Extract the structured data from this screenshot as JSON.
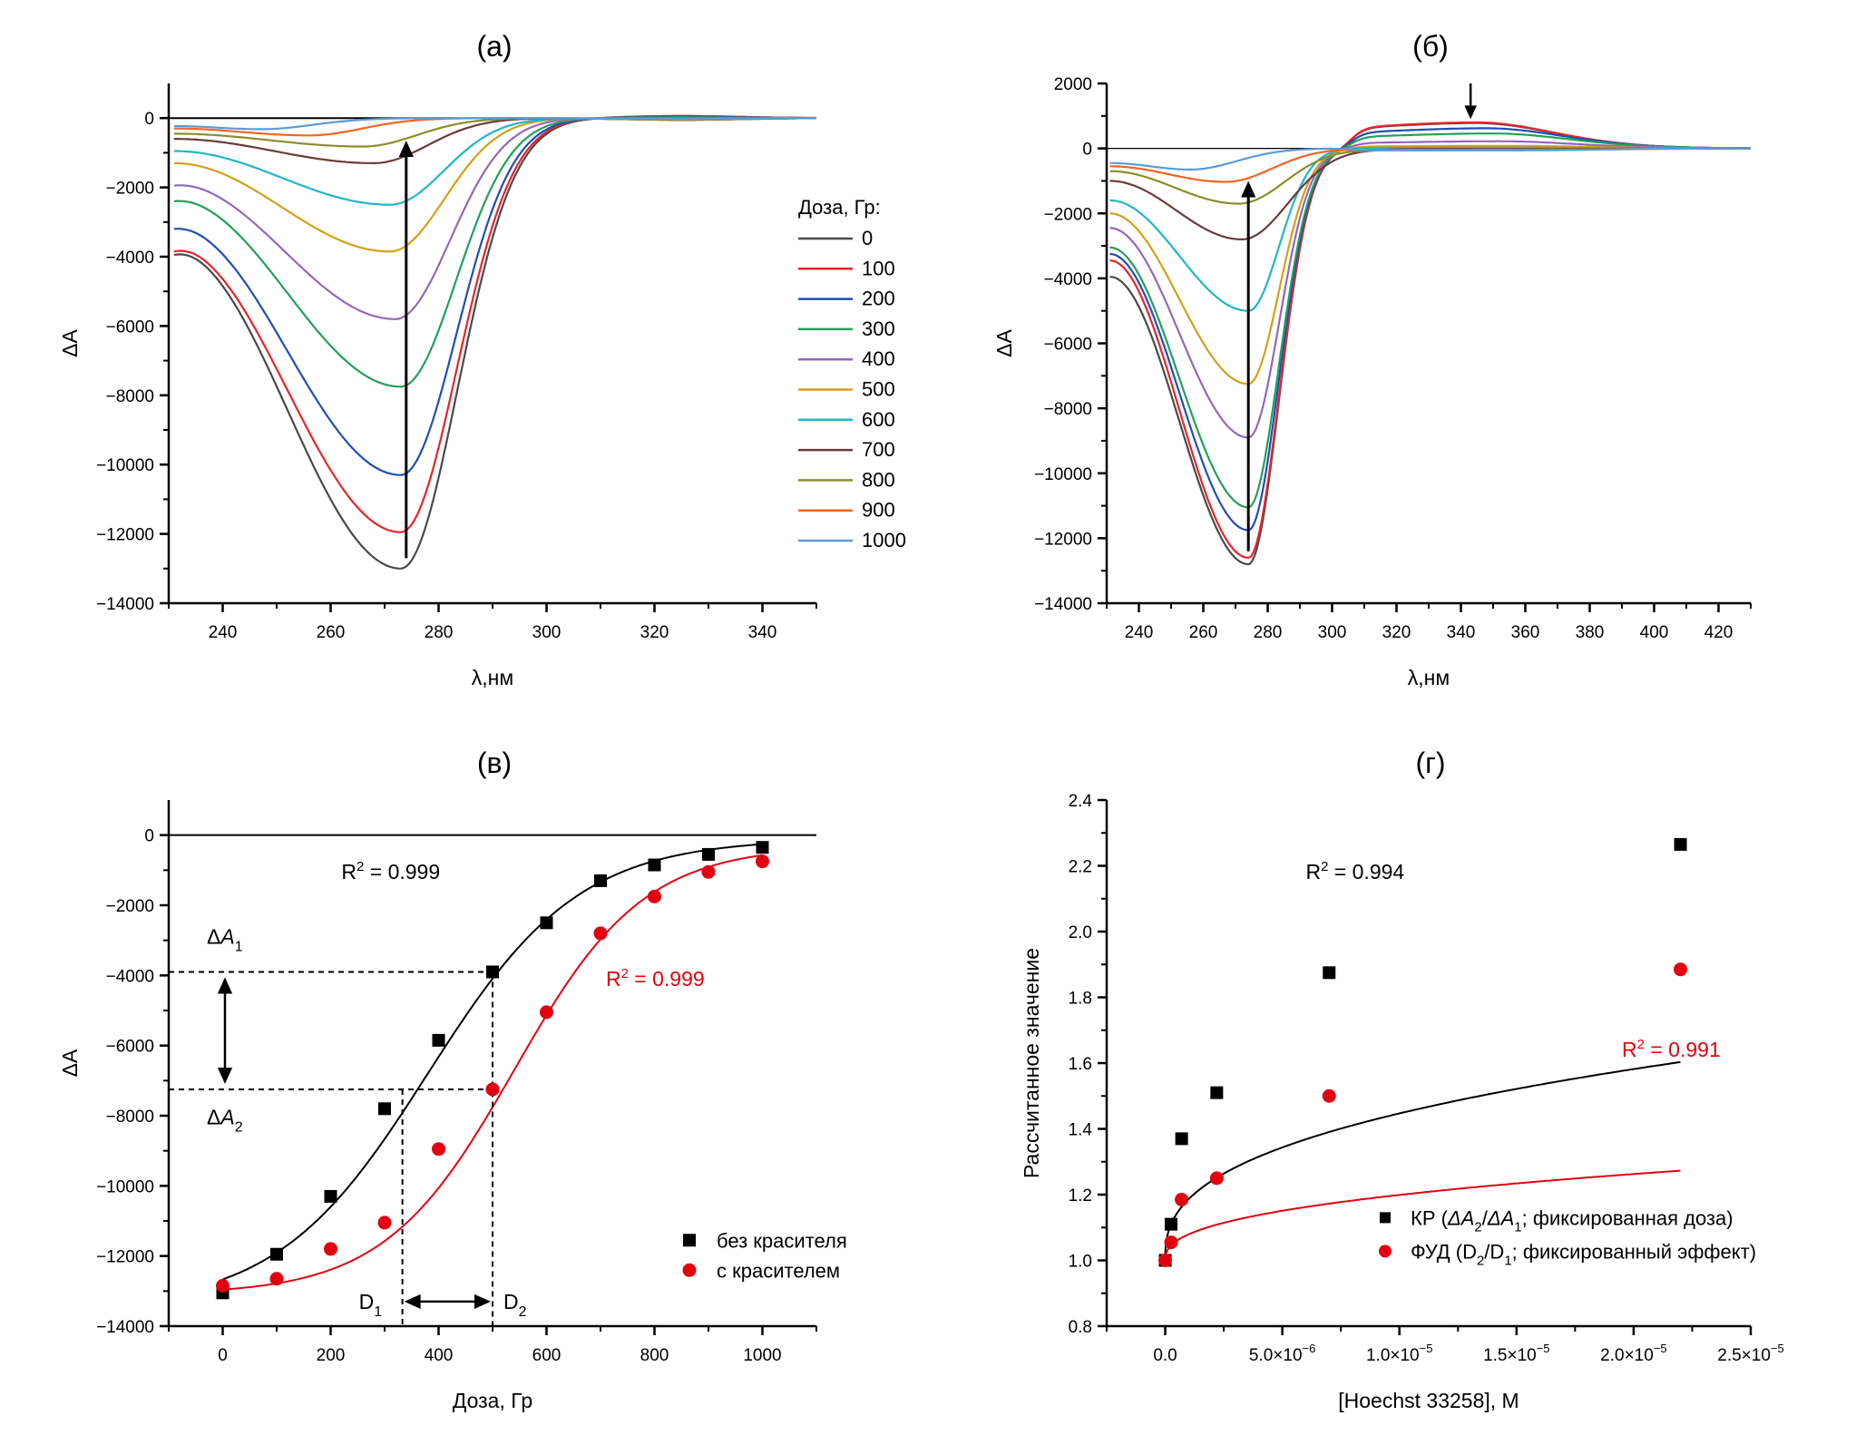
{
  "figure": {
    "panel_labels": [
      "(а)",
      "(б)",
      "(в)",
      "(г)"
    ]
  },
  "chart_data": [
    {
      "panel": "(а)",
      "type": "line",
      "title": "(а)",
      "xlabel": "λ,нм",
      "ylabel": "ΔA",
      "xlim": [
        230,
        350
      ],
      "ylim": [
        -14000,
        1000
      ],
      "xticks": [
        240,
        260,
        280,
        300,
        320,
        340
      ],
      "yticks": [
        0,
        -2000,
        -4000,
        -6000,
        -8000,
        -10000,
        -12000,
        -14000
      ],
      "legend_title": "Доза, Гр:",
      "legend_position": "right",
      "arrow_annotation": {
        "x": 274,
        "from": -12700,
        "to": -650,
        "direction": "up"
      },
      "series": [
        {
          "name": "0",
          "color": "#4a4a4a",
          "start": -3950,
          "start_peak": -3850,
          "min_x": 273,
          "min": -13000,
          "tail_peak": 60
        },
        {
          "name": "100",
          "color": "#e8242a",
          "start": -3850,
          "start_peak": -3750,
          "min_x": 273,
          "min": -11950,
          "tail_peak": 60
        },
        {
          "name": "200",
          "color": "#1f4fb3",
          "start": -3200,
          "start_peak": -3150,
          "min_x": 273,
          "min": -10300,
          "tail_peak": 40
        },
        {
          "name": "300",
          "color": "#22a05a",
          "start": -2400,
          "start_peak": -2350,
          "min_x": 273,
          "min": -7750,
          "tail_peak": 20
        },
        {
          "name": "400",
          "color": "#9467bd",
          "start": -1950,
          "start_peak": -1900,
          "min_x": 272,
          "min": -5800,
          "tail_peak": 0
        },
        {
          "name": "500",
          "color": "#d4a017",
          "start": -1300,
          "start_peak": -1300,
          "min_x": 271,
          "min": -3850,
          "tail_peak": -30
        },
        {
          "name": "600",
          "color": "#1fb7c9",
          "start": -950,
          "start_peak": -950,
          "min_x": 271,
          "min": -2500,
          "tail_peak": -50
        },
        {
          "name": "700",
          "color": "#6b3b3b",
          "start": -600,
          "start_peak": -600,
          "min_x": 268,
          "min": -1300,
          "tail_peak": -50
        },
        {
          "name": "800",
          "color": "#8a8f2a",
          "start": -450,
          "start_peak": -450,
          "min_x": 266,
          "min": -820,
          "tail_peak": -50
        },
        {
          "name": "900",
          "color": "#f26522",
          "start": -300,
          "start_peak": -300,
          "min_x": 256,
          "min": -500,
          "tail_peak": -30
        },
        {
          "name": "1000",
          "color": "#5b9bd5",
          "start": -230,
          "start_peak": -230,
          "min_x": 247,
          "min": -320,
          "tail_peak": -20
        }
      ]
    },
    {
      "panel": "(б)",
      "type": "line",
      "title": "(б)",
      "xlabel": "λ,нм",
      "ylabel": "ΔA",
      "xlim": [
        230,
        430
      ],
      "ylim": [
        -14000,
        2000
      ],
      "xticks": [
        240,
        260,
        280,
        300,
        320,
        340,
        360,
        380,
        400,
        420
      ],
      "yticks": [
        2000,
        0,
        -2000,
        -4000,
        -6000,
        -8000,
        -10000,
        -12000,
        -14000
      ],
      "arrow_annotations": [
        {
          "x": 274,
          "from": -12400,
          "to": -1000,
          "direction": "up"
        },
        {
          "x": 343,
          "from": 2000,
          "to": 900,
          "direction": "down"
        }
      ],
      "series": [
        {
          "name": "0",
          "color": "#4a4a4a",
          "start": -3950,
          "min_x": 274,
          "min": -12800,
          "pos_peak_x": 345,
          "pos_peak": 780
        },
        {
          "name": "100",
          "color": "#e8242a",
          "start": -3450,
          "min_x": 274,
          "min": -12600,
          "pos_peak_x": 345,
          "pos_peak": 800
        },
        {
          "name": "200",
          "color": "#1f4fb3",
          "start": -3250,
          "min_x": 274,
          "min": -11750,
          "pos_peak_x": 348,
          "pos_peak": 620
        },
        {
          "name": "300",
          "color": "#22a05a",
          "start": -3050,
          "min_x": 274,
          "min": -11050,
          "pos_peak_x": 350,
          "pos_peak": 460
        },
        {
          "name": "400",
          "color": "#9467bd",
          "start": -2450,
          "min_x": 274,
          "min": -8900,
          "pos_peak_x": 352,
          "pos_peak": 220
        },
        {
          "name": "500",
          "color": "#d4a017",
          "start": -2000,
          "min_x": 274,
          "min": -7250,
          "pos_peak_x": 355,
          "pos_peak": 80
        },
        {
          "name": "600",
          "color": "#1fb7c9",
          "start": -1600,
          "min_x": 274,
          "min": -5000,
          "pos_peak_x": 355,
          "pos_peak": 20
        },
        {
          "name": "700",
          "color": "#6b3b3b",
          "start": -1000,
          "min_x": 272,
          "min": -2800,
          "pos_peak_x": 355,
          "pos_peak": -20
        },
        {
          "name": "800",
          "color": "#8a8f2a",
          "start": -700,
          "min_x": 271,
          "min": -1700,
          "pos_peak_x": 355,
          "pos_peak": -40
        },
        {
          "name": "900",
          "color": "#f26522",
          "start": -550,
          "min_x": 267,
          "min": -1030,
          "pos_peak_x": 355,
          "pos_peak": -50
        },
        {
          "name": "1000",
          "color": "#5b9bd5",
          "start": -450,
          "min_x": 256,
          "min": -650,
          "pos_peak_x": 355,
          "pos_peak": -60
        }
      ]
    },
    {
      "panel": "(в)",
      "type": "scatter",
      "title": "(в)",
      "xlabel": "Доза, Гр",
      "ylabel": "ΔA",
      "xlim": [
        -100,
        1100
      ],
      "ylim": [
        -14000,
        1000
      ],
      "xticks": [
        0,
        200,
        400,
        600,
        800,
        1000
      ],
      "yticks": [
        0,
        -2000,
        -4000,
        -6000,
        -8000,
        -10000,
        -12000,
        -14000
      ],
      "legend_position": "bottom-right",
      "x": [
        0,
        100,
        200,
        300,
        400,
        500,
        600,
        700,
        800,
        900,
        1000
      ],
      "series": [
        {
          "name": "без красителя",
          "color": "#000000",
          "marker": "square",
          "values": [
            -13050,
            -11950,
            -10300,
            -7800,
            -5850,
            -3900,
            -2500,
            -1300,
            -850,
            -550,
            -350
          ],
          "fit_r2_label": "R² = 0.999"
        },
        {
          "name": "с красителем",
          "color": "#e3000f",
          "marker": "circle",
          "values": [
            -12850,
            -12650,
            -11800,
            -11050,
            -8950,
            -7250,
            -5050,
            -2800,
            -1750,
            -1050,
            -750
          ],
          "fit_r2_label": "R² = 0.999"
        }
      ],
      "annotations": {
        "dA1_label": "ΔA",
        "dA1_sub": "1",
        "dA2_label": "ΔA",
        "dA2_sub": "2",
        "D1_label": "D",
        "D1_sub": "1",
        "D2_label": "D",
        "D2_sub": "2",
        "dA1_value": -3900,
        "dA2_value": -7250,
        "D1_value": 333,
        "D2_value": 500
      }
    },
    {
      "panel": "(г)",
      "type": "scatter",
      "title": "(г)",
      "xlabel": "[Hoechst 33258], M",
      "ylabel": "Рассчитанное значение",
      "xlim": [
        -2.5e-06,
        2.5e-05
      ],
      "ylim": [
        0.8,
        2.4
      ],
      "xticks": [
        0,
        5e-06,
        1e-05,
        1.5e-05,
        2e-05,
        2.5e-05
      ],
      "xtick_labels": [
        {
          "mant": "0.0",
          "exp": ""
        },
        {
          "mant": "5.0×10",
          "exp": "−6"
        },
        {
          "mant": "1.0×10",
          "exp": "−5"
        },
        {
          "mant": "1.5×10",
          "exp": "−5"
        },
        {
          "mant": "2.0×10",
          "exp": "−5"
        },
        {
          "mant": "2.5×10",
          "exp": "−5"
        }
      ],
      "yticks": [
        0.8,
        1.0,
        1.2,
        1.4,
        1.6,
        1.8,
        2.0,
        2.2,
        2.4
      ],
      "legend_position": "bottom-right",
      "series": [
        {
          "name": "КР (ΔA₂/ΔA₁; фиксированная доза)",
          "color": "#000000",
          "marker": "square",
          "x": [
            0,
            2.5e-07,
            7e-07,
            2.2e-06,
            7e-06,
            2.2e-05
          ],
          "values": [
            1.0,
            1.11,
            1.37,
            1.51,
            1.875,
            2.265
          ],
          "fit_r2_label": "R² = 0.994"
        },
        {
          "name": "ФУД (D₂/D₁; фиксированный эффект)",
          "color": "#e3000f",
          "marker": "circle",
          "x": [
            0,
            2.5e-07,
            7e-07,
            2.2e-06,
            7e-06,
            2.2e-05
          ],
          "values": [
            1.0,
            1.055,
            1.185,
            1.25,
            1.5,
            1.885
          ],
          "fit_r2_label": "R² = 0.991"
        }
      ],
      "legend_entries": [
        {
          "prefix": "КР (",
          "a": "ΔA",
          "s1": "2",
          "mid": "/",
          "b": "ΔA",
          "s2": "1",
          "suffix": "; фиксированная доза)"
        },
        {
          "prefix": "ФУД (",
          "a": "D",
          "s1": "2",
          "mid": "/",
          "b": "D",
          "s2": "1",
          "suffix": "; фиксированный эффект)"
        }
      ]
    }
  ]
}
